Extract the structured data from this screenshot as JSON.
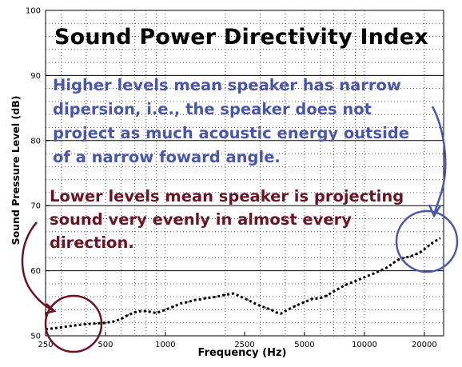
{
  "chart_data": {
    "type": "line",
    "title": "",
    "xlabel": "Frequency (Hz)",
    "ylabel": "Sound Pressure Level (dB)",
    "xscale": "log",
    "xlim": [
      250,
      25000
    ],
    "ylim": [
      50,
      100
    ],
    "grid": true,
    "x_ticks": [
      250,
      500,
      1000,
      2500,
      5000,
      10000,
      20000
    ],
    "x_tick_labels": [
      "250",
      "500",
      "1000",
      "2500",
      "5000",
      "10000",
      "20000"
    ],
    "y_ticks": [
      50,
      60,
      70,
      80,
      90,
      100
    ],
    "y_tick_labels": [
      "50",
      "60",
      "70",
      "80",
      "90",
      "100"
    ],
    "series": [
      {
        "color": "#000000",
        "style": "dotted",
        "x": [
          250,
          300,
          350,
          400,
          450,
          500,
          550,
          600,
          650,
          700,
          750,
          800,
          900,
          1000,
          1100,
          1200,
          1300,
          1400,
          1500,
          1600,
          1800,
          2000,
          2200,
          2400,
          2600,
          2800,
          3000,
          3200,
          3400,
          3600,
          3800,
          4000,
          4500,
          5000,
          5500,
          6000,
          6500,
          7000,
          8000,
          9000,
          10000,
          11000,
          12000,
          13000,
          14000,
          15000,
          16000,
          17000,
          18000,
          19000,
          20000,
          22000,
          24000
        ],
        "y": [
          51.0,
          51.3,
          51.6,
          51.8,
          51.9,
          52.0,
          52.2,
          52.6,
          53.2,
          53.6,
          53.8,
          53.8,
          53.5,
          54.0,
          54.5,
          55.0,
          55.2,
          55.5,
          55.6,
          55.8,
          56.0,
          56.3,
          56.5,
          56.0,
          55.5,
          55.0,
          54.6,
          54.3,
          54.0,
          53.6,
          53.4,
          53.8,
          54.6,
          55.2,
          55.7,
          55.8,
          56.2,
          56.8,
          57.8,
          58.4,
          59.0,
          59.5,
          60.0,
          60.5,
          61.2,
          61.8,
          62.0,
          62.2,
          62.5,
          62.8,
          63.3,
          64.3,
          65.0
        ]
      }
    ],
    "annotations": {
      "title_text": "Sound Power Directivity Index",
      "high_note": "Higher levels mean speaker has narrow dipersion, i.e., the speaker does not project as much acoustic energy outside of a narrow foward angle.",
      "low_note": "Lower levels mean speaker is projecting sound very evenly in almost every direction.",
      "high_color": "#4a56a8",
      "low_color": "#6b1424"
    }
  }
}
